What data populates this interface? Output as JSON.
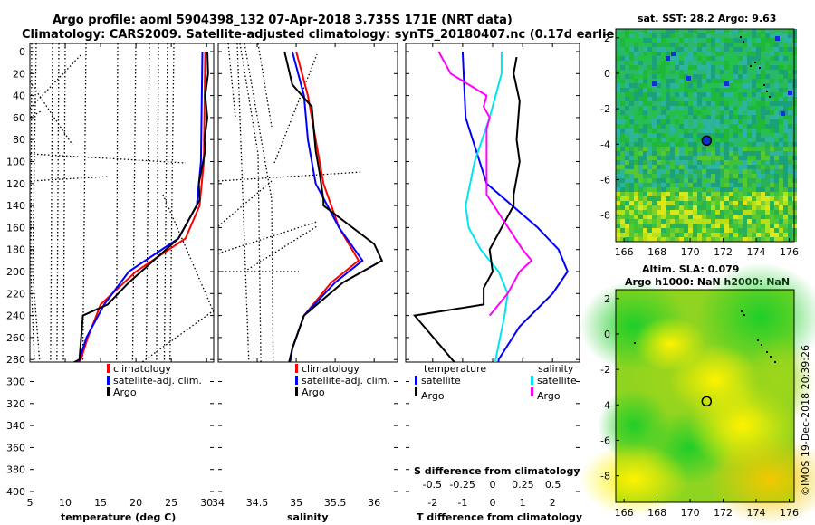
{
  "title_line1": "Argo profile: aoml 5904398_132 07-Apr-2018 3.735S 171E (NRT data)",
  "title_line2": "Climatology: CARS2009. Satellite-adjusted climatology: synTS_20180407.nc (0.17d earlier)",
  "colors": {
    "climatology": "#ff0000",
    "satellite": "#0000ff",
    "argo": "#000000",
    "sat_salinity": "#00e5ee",
    "sat_temp_diff": "#ff00ff"
  },
  "legend": {
    "climatology": "climatology",
    "satellite_adj": "satellite-adj. clim.",
    "argo": "Argo"
  },
  "diff_legend": {
    "temperature": "temperature",
    "salinity": "salinity",
    "satellite": "satellite",
    "argo": "Argo"
  },
  "depth_ticks": [
    "0",
    "20",
    "40",
    "60",
    "80",
    "100",
    "120",
    "140",
    "160",
    "180",
    "200",
    "220",
    "240",
    "260",
    "280",
    "300",
    "320",
    "340",
    "360",
    "380",
    "400"
  ],
  "chart_data": [
    {
      "type": "line",
      "xlabel": "temperature (deg C)",
      "ylabel": "depth",
      "xlim": [
        5,
        31
      ],
      "ylim": [
        0,
        400
      ],
      "xticks": [
        "5",
        "10",
        "15",
        "20",
        "25",
        "30"
      ],
      "series": [
        {
          "name": "climatology",
          "depth": [
            0,
            100,
            140,
            170,
            200,
            230,
            260,
            280,
            300,
            320,
            340,
            360,
            380,
            400
          ],
          "values": [
            29.8,
            29.6,
            29.0,
            27.0,
            20.0,
            15.0,
            13.2,
            12.2,
            11.6,
            11.0,
            10.6,
            10.4,
            10.1,
            9.9
          ]
        },
        {
          "name": "satellite-adj. clim.",
          "depth": [
            0,
            100,
            140,
            170,
            200,
            230,
            260,
            280,
            300,
            320,
            340,
            360,
            380,
            400
          ],
          "values": [
            29.4,
            29.2,
            28.6,
            26.0,
            19.0,
            15.5,
            13.0,
            12.0,
            11.4,
            10.9,
            10.5,
            10.3,
            10.0,
            9.8
          ]
        },
        {
          "name": "Argo",
          "depth": [
            0,
            20,
            40,
            60,
            80,
            90,
            120,
            135,
            170,
            210,
            230,
            240,
            280,
            290,
            320,
            340,
            360,
            380,
            400
          ],
          "values": [
            30.1,
            30.2,
            29.8,
            30.1,
            29.7,
            29.8,
            28.9,
            29.0,
            26.0,
            19.0,
            16.0,
            12.5,
            12.0,
            9.0,
            10.5,
            9.8,
            9.6,
            9.4,
            9.3
          ]
        }
      ]
    },
    {
      "type": "line",
      "xlabel": "salinity",
      "ylabel": "depth",
      "xlim": [
        34,
        36.3
      ],
      "ylim": [
        0,
        400
      ],
      "xticks": [
        "34",
        "34.5",
        "35",
        "35.5",
        "36"
      ],
      "series": [
        {
          "name": "climatology",
          "depth": [
            0,
            40,
            80,
            120,
            160,
            190,
            210,
            240,
            270,
            300,
            340,
            400
          ],
          "values": [
            35.0,
            35.15,
            35.25,
            35.35,
            35.55,
            35.8,
            35.45,
            35.1,
            34.95,
            34.88,
            34.8,
            34.75
          ]
        },
        {
          "name": "satellite-adj. clim.",
          "depth": [
            0,
            40,
            80,
            120,
            160,
            190,
            210,
            240,
            270,
            300,
            340,
            400
          ],
          "values": [
            34.95,
            35.1,
            35.15,
            35.25,
            35.55,
            35.85,
            35.5,
            35.1,
            34.95,
            34.88,
            34.8,
            34.75
          ]
        },
        {
          "name": "Argo",
          "depth": [
            0,
            30,
            50,
            90,
            110,
            135,
            140,
            175,
            190,
            210,
            240,
            270,
            300,
            340,
            400
          ],
          "values": [
            34.85,
            34.95,
            35.2,
            35.25,
            35.3,
            35.35,
            35.35,
            36.0,
            36.1,
            35.6,
            35.1,
            34.95,
            34.85,
            34.8,
            34.75
          ]
        }
      ]
    },
    {
      "type": "line",
      "xlabel": "T difference from climatology",
      "x2label": "S difference from climatology",
      "ylabel": "depth",
      "xlim": [
        -2.9,
        2.9
      ],
      "ylim": [
        0,
        400
      ],
      "xticks": [
        "-2",
        "-1",
        "0",
        "1",
        "2"
      ],
      "x2ticks": [
        "-0.5",
        "-0.25",
        "0",
        "0.25",
        "0.5"
      ],
      "series": [
        {
          "name": "temperature satellite",
          "depth": [
            0,
            60,
            120,
            160,
            180,
            200,
            220,
            250,
            280,
            320,
            360,
            400
          ],
          "values": [
            -1.0,
            -0.9,
            -0.2,
            1.5,
            2.2,
            2.5,
            2.0,
            0.9,
            0.2,
            0.1,
            0.0,
            0.0
          ]
        },
        {
          "name": "salinity satellite",
          "depth": [
            0,
            20,
            60,
            100,
            140,
            160,
            180,
            200,
            220,
            240,
            280,
            320,
            360,
            400
          ],
          "values": [
            0.3,
            0.3,
            -0.1,
            -0.6,
            -0.9,
            -0.8,
            -0.4,
            0.2,
            0.5,
            0.4,
            0.1,
            0.0,
            0.0,
            0.0
          ]
        },
        {
          "name": "temperature Argo",
          "depth": [
            5,
            20,
            45,
            80,
            100,
            130,
            140,
            180,
            200,
            215,
            230,
            240,
            320,
            340,
            360,
            400
          ],
          "values": [
            0.8,
            0.7,
            0.9,
            0.8,
            0.9,
            0.7,
            0.7,
            -0.1,
            0.0,
            -0.3,
            -0.3,
            -2.6,
            -0.1,
            -1.5,
            0.0,
            0.0
          ]
        },
        {
          "name": "salinity Argo",
          "depth": [
            0,
            20,
            40,
            50,
            60,
            70,
            120,
            130,
            180,
            190,
            200,
            220,
            240
          ],
          "values": [
            -1.8,
            -1.4,
            -0.2,
            -0.3,
            -0.1,
            -0.2,
            -0.2,
            -0.2,
            1.0,
            1.3,
            0.9,
            0.5,
            -0.1
          ]
        }
      ]
    }
  ],
  "map1": {
    "title": "sat. SST: 28.2 Argo: 9.63",
    "xticks": [
      "166",
      "168",
      "170",
      "172",
      "174",
      "176"
    ],
    "yticks": [
      "2",
      "0",
      "-2",
      "-4",
      "-6",
      "-8"
    ],
    "xlim": [
      165.5,
      176.3
    ],
    "ylim": [
      -9.5,
      2.5
    ],
    "argo_lon": 171,
    "argo_lat": -3.8
  },
  "map2": {
    "title1": "Altim. SLA: 0.079",
    "title2": "Argo h1000: NaN h2000: NaN",
    "xticks": [
      "166",
      "168",
      "170",
      "172",
      "174",
      "176"
    ],
    "yticks": [
      "2",
      "0",
      "-2",
      "-4",
      "-6",
      "-8"
    ],
    "xlim": [
      165.5,
      176.3
    ],
    "ylim": [
      -9.5,
      2.5
    ],
    "argo_lon": 171,
    "argo_lat": -3.8
  },
  "watermark": "©IMOS 19-Dec-2018 20:39:26"
}
